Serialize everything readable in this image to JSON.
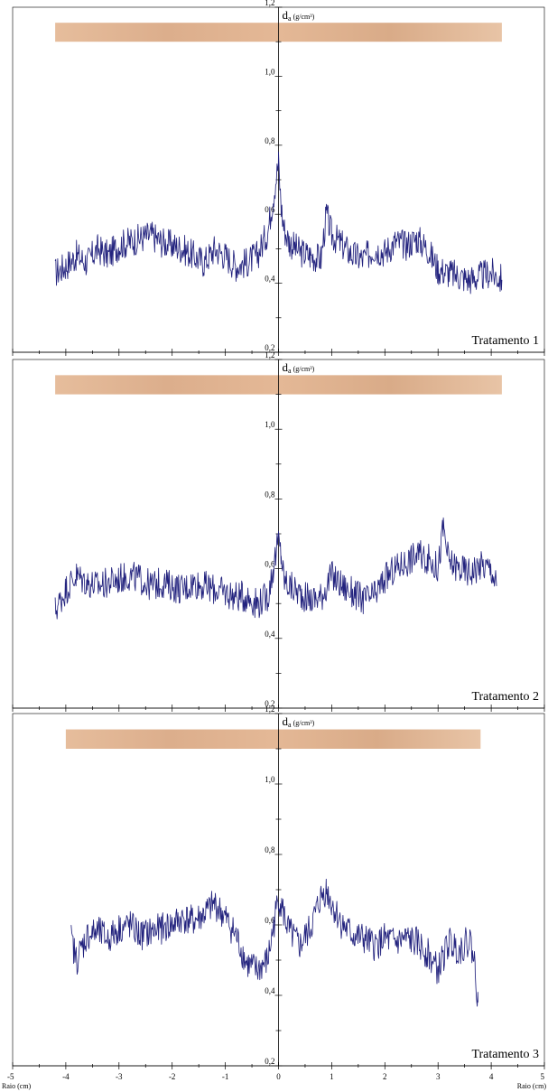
{
  "chart_data": [
    {
      "type": "line",
      "treatment_label": "Tratamento 1",
      "ylabel_main": "d",
      "ylabel_sub": "a",
      "ylabel_unit": "(g/cm³)",
      "ylim": [
        0.2,
        1.2
      ],
      "xlim": [
        -5,
        5
      ],
      "y_ticks": [
        "0,2",
        "0,4",
        "0,6",
        "0,8",
        "1,0",
        "1,2"
      ],
      "wood_strip_range": [
        -4.2,
        4.2
      ],
      "colors": {
        "line": "#23237e",
        "wood": "#e2b695"
      },
      "series": [
        {
          "x": [
            -4.2,
            -4.0,
            -3.8,
            -3.6,
            -3.4,
            -3.2,
            -3.0,
            -2.8,
            -2.6,
            -2.4,
            -2.2,
            -2.0,
            -1.8,
            -1.6,
            -1.4,
            -1.2,
            -1.0,
            -0.8,
            -0.6,
            -0.4,
            -0.2,
            -0.1,
            0.0,
            0.05,
            0.1,
            0.2,
            0.4,
            0.6,
            0.8,
            0.9,
            1.0,
            1.2,
            1.4,
            1.6,
            1.8,
            2.0,
            2.2,
            2.4,
            2.6,
            2.8,
            3.0,
            3.2,
            3.4,
            3.6,
            3.8,
            4.0,
            4.2
          ],
          "y": [
            0.43,
            0.45,
            0.48,
            0.46,
            0.5,
            0.48,
            0.51,
            0.52,
            0.53,
            0.54,
            0.52,
            0.51,
            0.5,
            0.48,
            0.46,
            0.5,
            0.48,
            0.45,
            0.46,
            0.48,
            0.55,
            0.65,
            0.75,
            0.62,
            0.56,
            0.52,
            0.49,
            0.48,
            0.47,
            0.6,
            0.54,
            0.51,
            0.48,
            0.47,
            0.5,
            0.49,
            0.52,
            0.51,
            0.53,
            0.5,
            0.44,
            0.43,
            0.42,
            0.41,
            0.42,
            0.43,
            0.41
          ]
        }
      ]
    },
    {
      "type": "line",
      "treatment_label": "Tratamento 2",
      "ylabel_main": "d",
      "ylabel_sub": "a",
      "ylabel_unit": "(g/cm³)",
      "ylim": [
        0.2,
        1.2
      ],
      "xlim": [
        -5,
        5
      ],
      "y_ticks": [
        "0,2",
        "0,4",
        "0,6",
        "0,8",
        "1,0",
        "1,2"
      ],
      "wood_strip_range": [
        -4.2,
        4.2
      ],
      "colors": {
        "line": "#23237e",
        "wood": "#e2b695"
      },
      "series": [
        {
          "x": [
            -4.2,
            -4.0,
            -3.8,
            -3.6,
            -3.4,
            -3.2,
            -3.0,
            -2.8,
            -2.6,
            -2.4,
            -2.2,
            -2.0,
            -1.8,
            -1.6,
            -1.4,
            -1.2,
            -1.0,
            -0.8,
            -0.6,
            -0.4,
            -0.2,
            -0.1,
            0.0,
            0.05,
            0.1,
            0.2,
            0.4,
            0.6,
            0.8,
            1.0,
            1.2,
            1.4,
            1.6,
            1.8,
            2.0,
            2.2,
            2.4,
            2.6,
            2.8,
            3.0,
            3.1,
            3.2,
            3.4,
            3.6,
            3.8,
            4.0,
            4.1
          ],
          "y": [
            0.48,
            0.54,
            0.58,
            0.56,
            0.55,
            0.56,
            0.57,
            0.58,
            0.57,
            0.55,
            0.56,
            0.55,
            0.54,
            0.56,
            0.55,
            0.54,
            0.53,
            0.52,
            0.52,
            0.5,
            0.52,
            0.6,
            0.68,
            0.64,
            0.57,
            0.55,
            0.53,
            0.51,
            0.52,
            0.58,
            0.55,
            0.53,
            0.51,
            0.52,
            0.57,
            0.6,
            0.62,
            0.64,
            0.63,
            0.6,
            0.72,
            0.62,
            0.6,
            0.59,
            0.61,
            0.6,
            0.55
          ]
        }
      ]
    },
    {
      "type": "line",
      "treatment_label": "Tratamento 3",
      "ylabel_main": "d",
      "ylabel_sub": "a",
      "ylabel_unit": "(g/cm³)",
      "ylim": [
        0.2,
        1.2
      ],
      "xlim": [
        -5,
        5
      ],
      "x_ticks": [
        "-5",
        "-4",
        "-3",
        "-2",
        "-1",
        "0",
        "1",
        "2",
        "3",
        "4",
        "5"
      ],
      "x_axis_label": "Raio (cm)",
      "y_ticks": [
        "0,2",
        "0,4",
        "0,6",
        "0,8",
        "1,0",
        "1,2"
      ],
      "wood_strip_range": [
        -4.0,
        3.8
      ],
      "colors": {
        "line": "#23237e",
        "wood": "#e2b695"
      },
      "series": [
        {
          "x": [
            -3.9,
            -3.8,
            -3.6,
            -3.4,
            -3.2,
            -3.0,
            -2.8,
            -2.6,
            -2.4,
            -2.2,
            -2.0,
            -1.8,
            -1.6,
            -1.4,
            -1.2,
            -1.0,
            -0.8,
            -0.6,
            -0.4,
            -0.2,
            0.0,
            0.1,
            0.2,
            0.4,
            0.6,
            0.8,
            0.9,
            1.0,
            1.2,
            1.4,
            1.6,
            1.8,
            2.0,
            2.2,
            2.4,
            2.6,
            2.8,
            3.0,
            3.2,
            3.4,
            3.6,
            3.7,
            3.75
          ],
          "y": [
            0.56,
            0.5,
            0.57,
            0.58,
            0.56,
            0.59,
            0.6,
            0.57,
            0.58,
            0.59,
            0.6,
            0.62,
            0.61,
            0.63,
            0.66,
            0.62,
            0.57,
            0.49,
            0.47,
            0.5,
            0.68,
            0.63,
            0.58,
            0.54,
            0.59,
            0.68,
            0.7,
            0.66,
            0.6,
            0.57,
            0.56,
            0.54,
            0.56,
            0.55,
            0.56,
            0.55,
            0.52,
            0.47,
            0.55,
            0.53,
            0.56,
            0.48,
            0.38
          ]
        }
      ]
    }
  ]
}
